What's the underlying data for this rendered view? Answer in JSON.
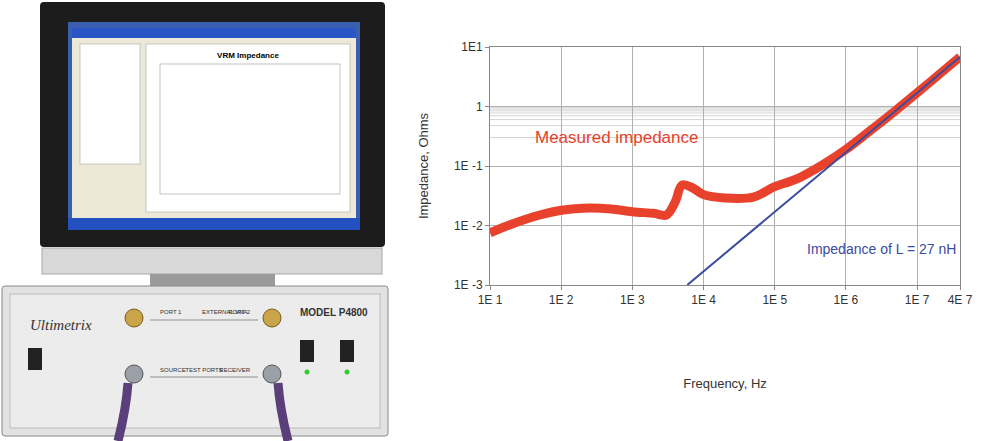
{
  "chart_data": {
    "type": "line",
    "log": true,
    "grid": true,
    "x_label": "Frequency, Hz",
    "y_label": "Impedance, Ohms",
    "xlim": [
      10,
      40000000
    ],
    "ylim": [
      0.001,
      10
    ],
    "xticks": [
      {
        "value": 10,
        "label": "1E 1"
      },
      {
        "value": 100,
        "label": "1E 2"
      },
      {
        "value": 1000,
        "label": "1E 3"
      },
      {
        "value": 10000,
        "label": "1E 4"
      },
      {
        "value": 100000,
        "label": "1E 5"
      },
      {
        "value": 1000000,
        "label": "1E 6"
      },
      {
        "value": 10000000,
        "label": "1E 7"
      },
      {
        "value": 40000000,
        "label": "4E 7"
      }
    ],
    "yticks": [
      {
        "value": 0.001,
        "label": "1E -3"
      },
      {
        "value": 0.01,
        "label": "1E -2"
      },
      {
        "value": 0.1,
        "label": "1E -1"
      },
      1,
      {
        "value": 10,
        "label": "1E1"
      }
    ],
    "series": [
      {
        "name": "Measured impedance",
        "color": "#e8412c",
        "line_style": "solid",
        "x": [
          10,
          20,
          50,
          100,
          200,
          500,
          1000,
          2000,
          3000,
          4000,
          5000,
          7000,
          10000,
          20000,
          50000,
          100000,
          200000,
          500000,
          1000000,
          2000000,
          5000000,
          10000000,
          20000000,
          40000000
        ],
        "values": [
          0.0075,
          0.0105,
          0.015,
          0.018,
          0.0195,
          0.019,
          0.017,
          0.016,
          0.015,
          0.025,
          0.048,
          0.043,
          0.033,
          0.029,
          0.03,
          0.045,
          0.06,
          0.11,
          0.19,
          0.36,
          0.86,
          1.7,
          3.4,
          6.8
        ]
      },
      {
        "name": "Impedance of L = 27 nH",
        "color": "#3a4ba0",
        "line_style": "solid",
        "x": [
          5900,
          40000000
        ],
        "values": [
          0.001,
          6.8
        ]
      }
    ]
  },
  "device": {
    "brand": "Ultimetrix",
    "model": "MODEL P4800",
    "screen_title": "VRM Impedance",
    "labels": [
      "PORT 1",
      "EXTERNAL VNA",
      "PORT 2",
      "SOURCE",
      "TEST PORTS",
      "RECEIVER"
    ]
  }
}
